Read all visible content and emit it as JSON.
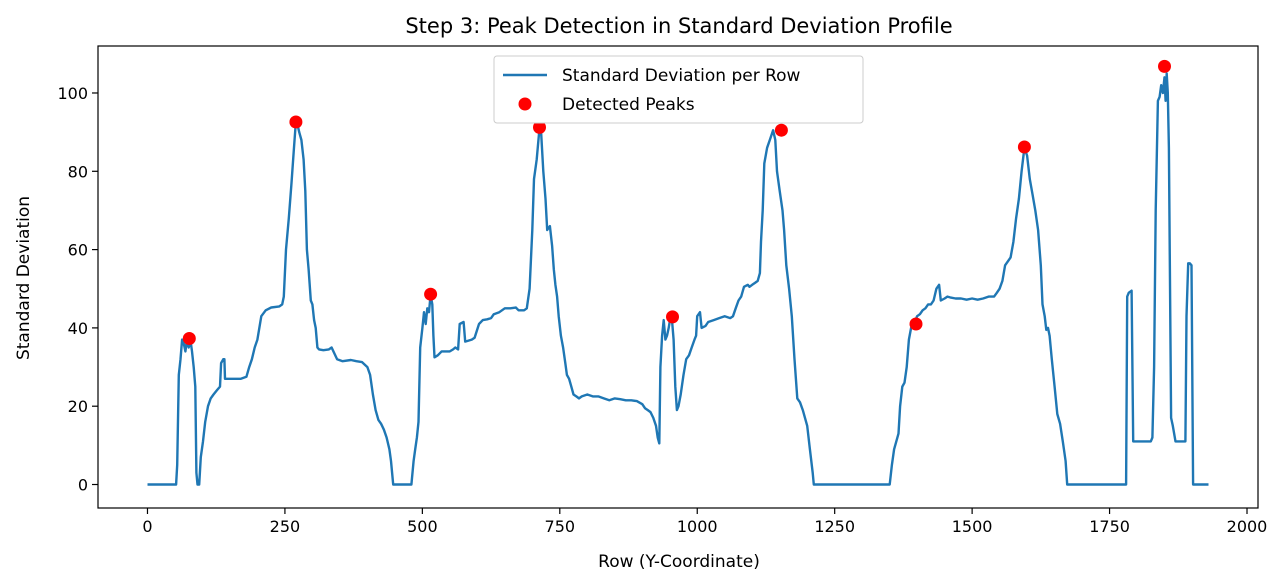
{
  "chart_data": {
    "type": "line",
    "title": "Step 3: Peak Detection in Standard Deviation Profile",
    "xlabel": "Row (Y-Coordinate)",
    "ylabel": "Standard Deviation",
    "xlim": [
      -90,
      2020
    ],
    "ylim": [
      -6,
      112
    ],
    "xticks": [
      0,
      250,
      500,
      750,
      1000,
      1250,
      1500,
      1750,
      2000
    ],
    "yticks": [
      0,
      20,
      40,
      60,
      80,
      100
    ],
    "grid": false,
    "legend_position": "top-center",
    "series": [
      {
        "name": "Standard Deviation per Row",
        "kind": "line",
        "color": "#1f77b4",
        "points": [
          [
            0,
            0
          ],
          [
            52,
            0
          ],
          [
            54,
            5
          ],
          [
            57,
            28
          ],
          [
            60,
            32
          ],
          [
            63,
            37
          ],
          [
            66,
            36
          ],
          [
            69,
            34
          ],
          [
            72,
            37
          ],
          [
            75,
            35
          ],
          [
            78,
            37
          ],
          [
            81,
            34
          ],
          [
            84,
            30
          ],
          [
            87,
            25
          ],
          [
            89,
            3
          ],
          [
            91,
            0
          ],
          [
            94,
            0
          ],
          [
            97,
            7
          ],
          [
            101,
            11
          ],
          [
            105,
            16
          ],
          [
            110,
            20
          ],
          [
            115,
            22
          ],
          [
            120,
            23
          ],
          [
            126,
            24
          ],
          [
            132,
            25
          ],
          [
            134,
            31
          ],
          [
            138,
            32
          ],
          [
            140,
            32
          ],
          [
            141,
            27
          ],
          [
            150,
            27
          ],
          [
            170,
            27
          ],
          [
            180,
            27.5
          ],
          [
            185,
            30
          ],
          [
            190,
            32
          ],
          [
            195,
            35
          ],
          [
            200,
            37
          ],
          [
            207,
            43
          ],
          [
            215,
            44.5
          ],
          [
            225,
            45.2
          ],
          [
            240,
            45.5
          ],
          [
            245,
            46
          ],
          [
            248,
            48
          ],
          [
            252,
            60
          ],
          [
            257,
            68
          ],
          [
            262,
            77
          ],
          [
            266,
            85
          ],
          [
            269,
            91
          ],
          [
            272,
            92.5
          ],
          [
            276,
            90
          ],
          [
            280,
            88
          ],
          [
            284,
            83
          ],
          [
            287,
            75
          ],
          [
            290,
            60
          ],
          [
            293,
            55
          ],
          [
            297,
            47
          ],
          [
            300,
            46
          ],
          [
            303,
            42
          ],
          [
            306,
            40
          ],
          [
            309,
            35
          ],
          [
            312,
            34.5
          ],
          [
            320,
            34.3
          ],
          [
            330,
            34.5
          ],
          [
            335,
            35
          ],
          [
            345,
            32
          ],
          [
            355,
            31.5
          ],
          [
            370,
            31.8
          ],
          [
            380,
            31.5
          ],
          [
            390,
            31.3
          ],
          [
            400,
            30
          ],
          [
            405,
            28
          ],
          [
            410,
            23
          ],
          [
            415,
            19
          ],
          [
            420,
            16.5
          ],
          [
            425,
            15.5
          ],
          [
            430,
            14
          ],
          [
            435,
            12
          ],
          [
            440,
            9
          ],
          [
            443,
            6
          ],
          [
            447,
            0
          ],
          [
            480,
            0
          ],
          [
            484,
            6
          ],
          [
            487,
            9
          ],
          [
            490,
            12
          ],
          [
            493,
            16
          ],
          [
            496,
            35
          ],
          [
            500,
            40
          ],
          [
            503,
            44
          ],
          [
            506,
            41
          ],
          [
            509,
            45
          ],
          [
            512,
            44
          ],
          [
            515,
            48.5
          ],
          [
            518,
            46
          ],
          [
            520,
            38
          ],
          [
            522,
            32.5
          ],
          [
            528,
            33
          ],
          [
            535,
            34
          ],
          [
            550,
            34
          ],
          [
            556,
            34.5
          ],
          [
            560,
            35
          ],
          [
            565,
            34.5
          ],
          [
            568,
            41
          ],
          [
            575,
            41.5
          ],
          [
            578,
            36.5
          ],
          [
            590,
            37
          ],
          [
            595,
            37.5
          ],
          [
            603,
            41
          ],
          [
            610,
            42
          ],
          [
            618,
            42.2
          ],
          [
            625,
            42.5
          ],
          [
            630,
            43.5
          ],
          [
            640,
            44
          ],
          [
            650,
            45
          ],
          [
            660,
            45
          ],
          [
            670,
            45.2
          ],
          [
            675,
            44.5
          ],
          [
            680,
            44.5
          ],
          [
            685,
            44.5
          ],
          [
            690,
            45
          ],
          [
            695,
            50
          ],
          [
            700,
            65
          ],
          [
            703,
            78
          ],
          [
            708,
            83
          ],
          [
            713,
            91
          ],
          [
            716,
            90
          ],
          [
            720,
            80
          ],
          [
            724,
            73
          ],
          [
            727,
            65
          ],
          [
            732,
            66
          ],
          [
            736,
            61
          ],
          [
            739,
            55
          ],
          [
            742,
            51
          ],
          [
            745,
            48
          ],
          [
            748,
            43
          ],
          [
            752,
            38
          ],
          [
            756,
            35
          ],
          [
            760,
            31
          ],
          [
            763,
            28
          ],
          [
            767,
            27
          ],
          [
            771,
            25
          ],
          [
            775,
            23
          ],
          [
            780,
            22.5
          ],
          [
            785,
            22
          ],
          [
            790,
            22.5
          ],
          [
            800,
            23
          ],
          [
            810,
            22.5
          ],
          [
            820,
            22.5
          ],
          [
            830,
            22
          ],
          [
            840,
            21.5
          ],
          [
            850,
            22
          ],
          [
            860,
            21.8
          ],
          [
            870,
            21.5
          ],
          [
            880,
            21.5
          ],
          [
            890,
            21.3
          ],
          [
            900,
            20.5
          ],
          [
            905,
            19.5
          ],
          [
            910,
            19
          ],
          [
            915,
            18.5
          ],
          [
            920,
            17
          ],
          [
            925,
            15
          ],
          [
            928,
            12
          ],
          [
            931,
            10.5
          ],
          [
            933,
            30
          ],
          [
            936,
            38
          ],
          [
            939,
            42
          ],
          [
            942,
            37
          ],
          [
            945,
            38
          ],
          [
            948,
            40
          ],
          [
            951,
            42.5
          ],
          [
            954,
            42
          ],
          [
            957,
            37
          ],
          [
            960,
            25
          ],
          [
            963,
            19
          ],
          [
            966,
            20
          ],
          [
            970,
            23
          ],
          [
            975,
            28
          ],
          [
            980,
            32
          ],
          [
            985,
            33
          ],
          [
            990,
            35
          ],
          [
            995,
            37
          ],
          [
            998,
            38
          ],
          [
            1000,
            43
          ],
          [
            1005,
            44
          ],
          [
            1008,
            40
          ],
          [
            1015,
            40.5
          ],
          [
            1020,
            41.5
          ],
          [
            1030,
            42
          ],
          [
            1040,
            42.5
          ],
          [
            1050,
            43
          ],
          [
            1060,
            42.5
          ],
          [
            1065,
            43
          ],
          [
            1070,
            45
          ],
          [
            1075,
            47
          ],
          [
            1080,
            48
          ],
          [
            1085,
            50.5
          ],
          [
            1092,
            51
          ],
          [
            1095,
            50.5
          ],
          [
            1100,
            51
          ],
          [
            1105,
            51.5
          ],
          [
            1110,
            52
          ],
          [
            1114,
            54
          ],
          [
            1116,
            62
          ],
          [
            1119,
            70
          ],
          [
            1122,
            82
          ],
          [
            1127,
            86
          ],
          [
            1132,
            88
          ],
          [
            1138,
            90.5
          ],
          [
            1142,
            88
          ],
          [
            1145,
            80
          ],
          [
            1150,
            75
          ],
          [
            1155,
            70
          ],
          [
            1158,
            65
          ],
          [
            1162,
            56
          ],
          [
            1167,
            50
          ],
          [
            1172,
            43
          ],
          [
            1177,
            32
          ],
          [
            1182,
            22
          ],
          [
            1187,
            21
          ],
          [
            1192,
            19
          ],
          [
            1196,
            17
          ],
          [
            1200,
            15
          ],
          [
            1205,
            9
          ],
          [
            1210,
            3
          ],
          [
            1212,
            0
          ],
          [
            1350,
            0
          ],
          [
            1354,
            5
          ],
          [
            1358,
            9
          ],
          [
            1362,
            11
          ],
          [
            1366,
            13
          ],
          [
            1369,
            20
          ],
          [
            1373,
            25
          ],
          [
            1377,
            26
          ],
          [
            1381,
            30
          ],
          [
            1385,
            37
          ],
          [
            1389,
            40
          ],
          [
            1393,
            41
          ],
          [
            1397,
            42
          ],
          [
            1400,
            43
          ],
          [
            1405,
            43.5
          ],
          [
            1410,
            44.5
          ],
          [
            1415,
            45
          ],
          [
            1420,
            46
          ],
          [
            1425,
            46
          ],
          [
            1430,
            47
          ],
          [
            1435,
            50
          ],
          [
            1440,
            51
          ],
          [
            1443,
            47
          ],
          [
            1450,
            47.5
          ],
          [
            1455,
            48
          ],
          [
            1460,
            47.8
          ],
          [
            1470,
            47.5
          ],
          [
            1480,
            47.5
          ],
          [
            1490,
            47.2
          ],
          [
            1500,
            47.5
          ],
          [
            1510,
            47.2
          ],
          [
            1520,
            47.5
          ],
          [
            1530,
            48
          ],
          [
            1540,
            48
          ],
          [
            1545,
            49
          ],
          [
            1550,
            50
          ],
          [
            1555,
            52
          ],
          [
            1560,
            56
          ],
          [
            1565,
            57
          ],
          [
            1570,
            58
          ],
          [
            1575,
            62
          ],
          [
            1580,
            68
          ],
          [
            1585,
            73
          ],
          [
            1590,
            80
          ],
          [
            1595,
            86
          ],
          [
            1600,
            84
          ],
          [
            1605,
            78
          ],
          [
            1610,
            74
          ],
          [
            1615,
            70
          ],
          [
            1620,
            65
          ],
          [
            1625,
            56
          ],
          [
            1628,
            46
          ],
          [
            1632,
            43
          ],
          [
            1635,
            39.5
          ],
          [
            1638,
            40
          ],
          [
            1641,
            38
          ],
          [
            1645,
            32
          ],
          [
            1650,
            25
          ],
          [
            1655,
            18
          ],
          [
            1660,
            15.5
          ],
          [
            1665,
            11
          ],
          [
            1670,
            6
          ],
          [
            1673,
            0
          ],
          [
            1780,
            0
          ],
          [
            1782,
            48
          ],
          [
            1785,
            49
          ],
          [
            1790,
            49.5
          ],
          [
            1793,
            11
          ],
          [
            1800,
            11
          ],
          [
            1810,
            11
          ],
          [
            1820,
            11
          ],
          [
            1825,
            11
          ],
          [
            1828,
            12
          ],
          [
            1831,
            30
          ],
          [
            1834,
            70
          ],
          [
            1838,
            98
          ],
          [
            1841,
            99
          ],
          [
            1844,
            102
          ],
          [
            1847,
            100
          ],
          [
            1850,
            104
          ],
          [
            1852,
            98
          ],
          [
            1854,
            105
          ],
          [
            1856,
            100
          ],
          [
            1858,
            86
          ],
          [
            1862,
            17
          ],
          [
            1865,
            15
          ],
          [
            1870,
            11
          ],
          [
            1880,
            11
          ],
          [
            1888,
            11
          ],
          [
            1890,
            43
          ],
          [
            1893,
            56.5
          ],
          [
            1896,
            56.5
          ],
          [
            1899,
            56
          ],
          [
            1902,
            0
          ],
          [
            1930,
            0
          ]
        ]
      },
      {
        "name": "Detected Peaks",
        "kind": "scatter",
        "color": "#ff0000",
        "points": [
          [
            76,
            37.3
          ],
          [
            270,
            92.6
          ],
          [
            515,
            48.6
          ],
          [
            713,
            91.2
          ],
          [
            955,
            42.8
          ],
          [
            1153,
            90.5
          ],
          [
            1398,
            41
          ],
          [
            1595,
            86.2
          ],
          [
            1850,
            106.8
          ]
        ]
      }
    ]
  }
}
